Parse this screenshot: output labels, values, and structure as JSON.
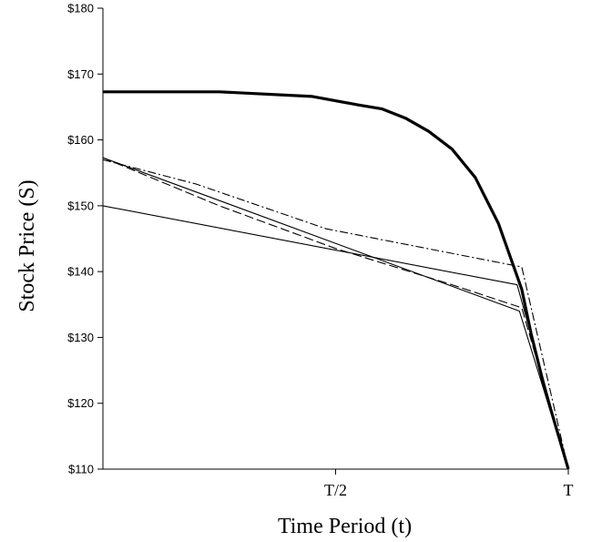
{
  "chart_data": {
    "type": "line",
    "title": "",
    "xlabel": "Time Period (t)",
    "ylabel": "Stock Price (S)",
    "xlim": [
      0,
      1
    ],
    "ylim": [
      110,
      180
    ],
    "yticks": [
      110,
      120,
      130,
      140,
      150,
      160,
      170,
      180
    ],
    "ytick_labels": [
      "$110",
      "$120",
      "$130",
      "$140",
      "$150",
      "$160",
      "$170",
      "$180"
    ],
    "xticks": [
      0.5,
      1
    ],
    "xtick_labels": [
      "T/2",
      "T"
    ],
    "grid": false,
    "legend": "none",
    "series": [
      {
        "style": "bold-solid",
        "x": [
          0,
          0.25,
          0.45,
          0.55,
          0.6,
          0.65,
          0.7,
          0.75,
          0.8,
          0.85,
          0.9,
          0.92,
          0.95,
          1.0
        ],
        "y": [
          167.3,
          167.3,
          166.6,
          165.3,
          164.7,
          163.3,
          161.3,
          158.6,
          154.3,
          147.3,
          137.3,
          130.6,
          122.0,
          110.0
        ]
      },
      {
        "style": "thin-solid",
        "x": [
          0,
          0.89,
          1.0
        ],
        "y": [
          150.0,
          138.0,
          110.0
        ]
      },
      {
        "style": "thin-solid",
        "x": [
          0,
          0.895,
          1.0
        ],
        "y": [
          157.3,
          134.0,
          110.0
        ]
      },
      {
        "style": "dash-dot",
        "x": [
          0,
          0.2,
          0.48,
          0.9,
          1.0
        ],
        "y": [
          157.0,
          153.3,
          146.5,
          140.7,
          110.0
        ]
      },
      {
        "style": "dashed",
        "x": [
          0,
          0.25,
          0.5,
          0.75,
          0.9,
          1.0
        ],
        "y": [
          157.3,
          150.0,
          143.5,
          138.0,
          134.5,
          110.0
        ]
      }
    ]
  }
}
